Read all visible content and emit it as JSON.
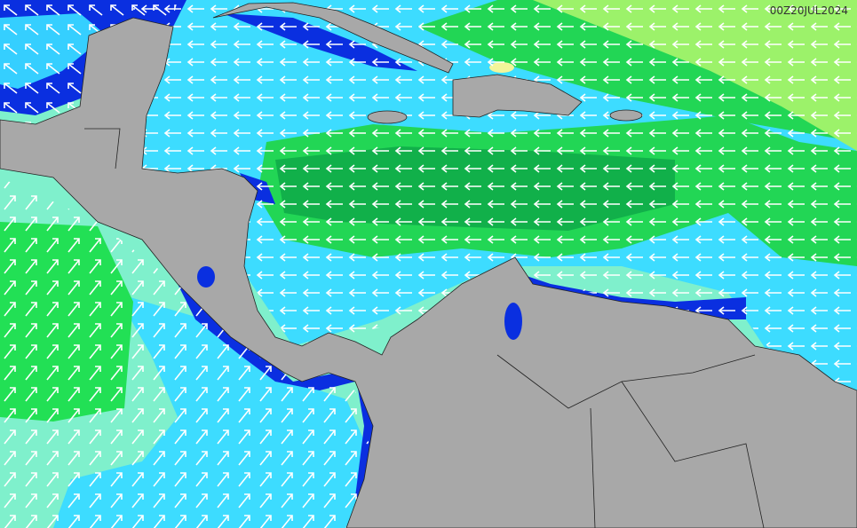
{
  "timestamp": "00Z20JUL2024"
}
